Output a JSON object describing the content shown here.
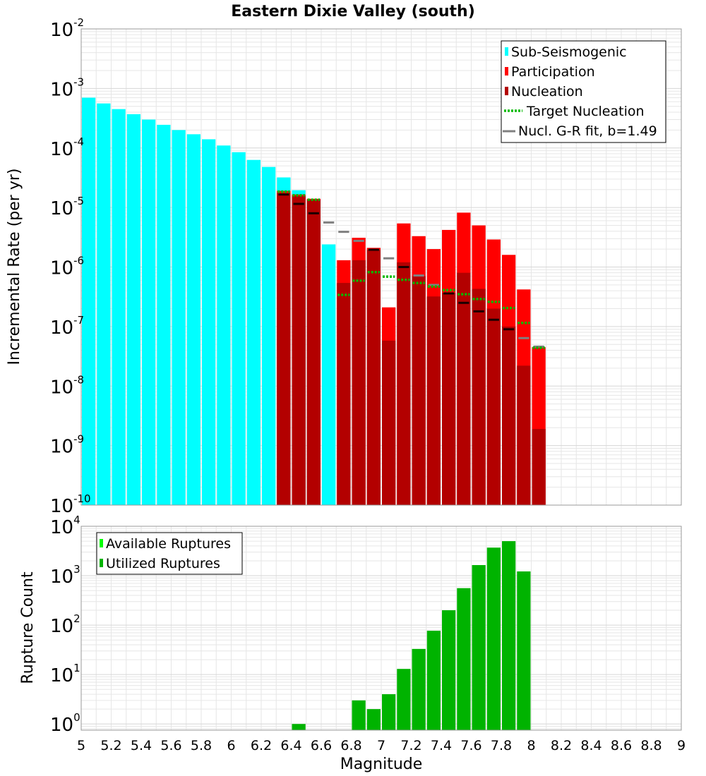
{
  "chart_data": [
    {
      "type": "bar",
      "title": "Eastern Dixie Valley (south)",
      "xlabel": "",
      "ylabel": "Incremental Rate (per yr)",
      "xlim": [
        5,
        9
      ],
      "ylim": [
        1e-10,
        0.01
      ],
      "yscale": "log",
      "legend_position": "top-right",
      "legend": [
        "Sub-Seismogenic",
        "Participation",
        "Nucleation",
        "Target Nucleation",
        "Nucl. G-R fit, b=1.49"
      ],
      "y_tick_labels": [
        {
          "base": "10",
          "exp": "-10"
        },
        {
          "base": "10",
          "exp": "-9"
        },
        {
          "base": "10",
          "exp": "-8"
        },
        {
          "base": "10",
          "exp": "-7"
        },
        {
          "base": "10",
          "exp": "-6"
        },
        {
          "base": "10",
          "exp": "-5"
        },
        {
          "base": "10",
          "exp": "-4"
        },
        {
          "base": "10",
          "exp": "-3"
        },
        {
          "base": "10",
          "exp": "-2"
        }
      ],
      "bin_width": 0.1,
      "sub_seismogenic": {
        "x": [
          5.05,
          5.15,
          5.25,
          5.35,
          5.45,
          5.55,
          5.65,
          5.75,
          5.85,
          5.95,
          6.05,
          6.15,
          6.25,
          6.35,
          6.45,
          6.55,
          6.65
        ],
        "values": [
          0.0007,
          0.00056,
          0.00045,
          0.00037,
          0.0003,
          0.000245,
          0.0002,
          0.00017,
          0.00014,
          0.00011,
          8.5e-05,
          6.3e-05,
          4.8e-05,
          3.2e-05,
          1.95e-05,
          1.2e-05,
          2.4e-06
        ]
      },
      "participation": {
        "x": [
          6.35,
          6.45,
          6.55,
          6.75,
          6.85,
          6.95,
          7.05,
          7.15,
          7.25,
          7.35,
          7.45,
          7.55,
          7.65,
          7.75,
          7.85,
          7.95,
          8.05
        ],
        "values": [
          1.9e-05,
          1.65e-05,
          1.4e-05,
          1.3e-06,
          3.1e-06,
          2.1e-06,
          2.1e-07,
          5.4e-06,
          3.3e-06,
          2e-06,
          4.2e-06,
          8.2e-06,
          5e-06,
          2.9e-06,
          1.6e-06,
          4.2e-07,
          4.5e-08
        ]
      },
      "nucleation": {
        "x": [
          6.35,
          6.45,
          6.55,
          6.75,
          6.85,
          6.95,
          7.05,
          7.15,
          7.25,
          7.35,
          7.45,
          7.55,
          7.65,
          7.75,
          7.85,
          7.95,
          8.05
        ],
        "values": [
          1.75e-05,
          1.55e-05,
          1.35e-05,
          5.4e-07,
          1.3e-06,
          1.95e-06,
          5.8e-08,
          1.2e-06,
          7e-07,
          3.2e-07,
          3.7e-07,
          8e-07,
          4.3e-07,
          2e-07,
          1e-07,
          2.2e-08,
          1.9e-09
        ]
      },
      "target_nucleation": {
        "x": [
          6.35,
          6.45,
          6.55,
          6.75,
          6.85,
          6.95,
          7.05,
          7.15,
          7.25,
          7.35,
          7.45,
          7.55,
          7.65,
          7.75,
          7.85,
          7.95,
          8.05
        ],
        "values": [
          1.85e-05,
          1.6e-05,
          1.35e-05,
          3.4e-07,
          5.9e-07,
          8.2e-07,
          6.9e-07,
          6.1e-07,
          5.4e-07,
          4.7e-07,
          4.1e-07,
          3.5e-07,
          2.9e-07,
          2.6e-07,
          2.05e-07,
          1.15e-07,
          4.4e-08
        ]
      },
      "gr_fit": {
        "x": [
          6.35,
          6.45,
          6.55,
          6.65,
          6.75,
          6.85,
          6.95,
          7.05,
          7.15,
          7.25,
          7.35,
          7.45,
          7.55,
          7.65,
          7.75,
          7.85,
          7.95,
          8.05
        ],
        "values": [
          1.65e-05,
          1.15e-05,
          8e-06,
          5.6e-06,
          3.9e-06,
          2.75e-06,
          1.95e-06,
          1.4e-06,
          1e-06,
          7.2e-07,
          5e-07,
          3.6e-07,
          2.5e-07,
          1.8e-07,
          1.3e-07,
          9e-08,
          6.4e-08,
          4.6e-08
        ]
      }
    },
    {
      "type": "bar",
      "title": "",
      "xlabel": "Magnitude",
      "ylabel": "Rupture Count",
      "xlim": [
        5,
        9
      ],
      "ylim": [
        0.75,
        10000
      ],
      "yscale": "log",
      "legend_position": "top-left",
      "legend": [
        "Available Ruptures",
        "Utilized Ruptures"
      ],
      "x_ticks": [
        "5",
        "5.2",
        "5.4",
        "5.6",
        "5.8",
        "6",
        "6.2",
        "6.4",
        "6.6",
        "6.8",
        "7",
        "7.2",
        "7.4",
        "7.6",
        "7.8",
        "8",
        "8.2",
        "8.4",
        "8.6",
        "8.8",
        "9"
      ],
      "y_tick_labels": [
        {
          "base": "10",
          "exp": "0"
        },
        {
          "base": "10",
          "exp": "1"
        },
        {
          "base": "10",
          "exp": "2"
        },
        {
          "base": "10",
          "exp": "3"
        },
        {
          "base": "10",
          "exp": "4"
        }
      ],
      "bin_width": 0.1,
      "utilized_ruptures": {
        "x": [
          6.45,
          6.85,
          6.95,
          7.05,
          7.15,
          7.25,
          7.35,
          7.45,
          7.55,
          7.65,
          7.75,
          7.85,
          7.95
        ],
        "values": [
          1,
          3,
          2,
          4,
          13,
          33,
          77,
          200,
          560,
          1640,
          3700,
          5000,
          1220
        ]
      }
    }
  ],
  "colors": {
    "sub_seismogenic": "#00ffff",
    "participation": "#ff0000",
    "nucleation": "#b30000",
    "target_nucleation": "#00bb00",
    "gr_fit": "#808080",
    "available": "#00ff00",
    "utilized": "#00b300",
    "grid": "#e6e6e6"
  }
}
